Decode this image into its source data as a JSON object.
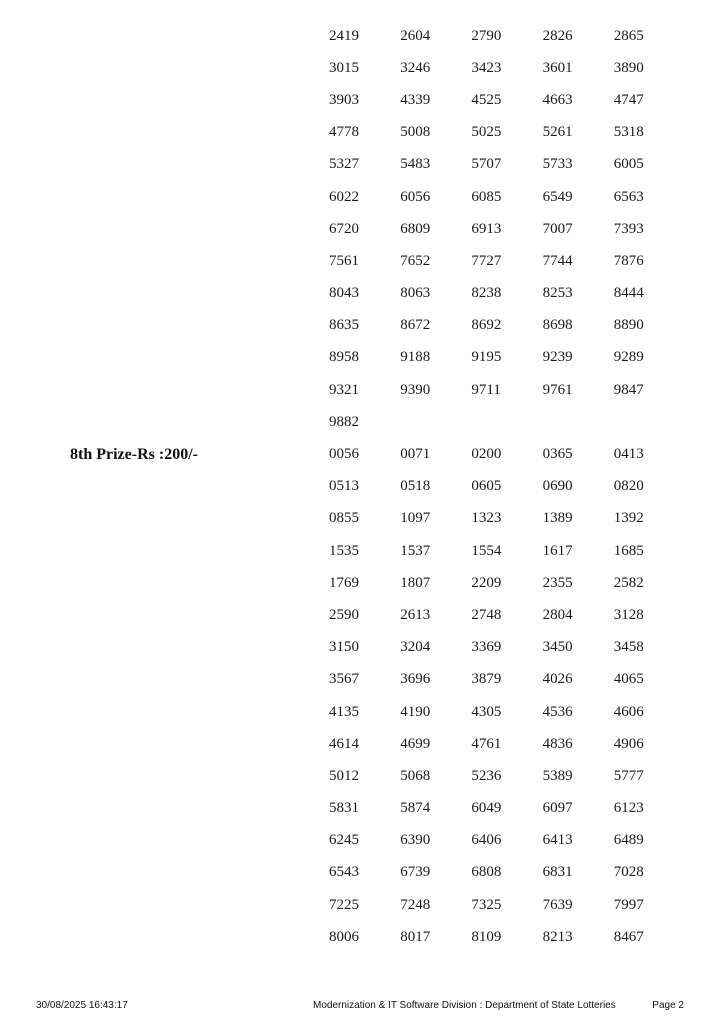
{
  "page": {
    "background_color": "#ffffff",
    "text_color": "#1b1b1b"
  },
  "results": {
    "sections": [
      {
        "label": "",
        "rows": [
          [
            "2419",
            "2604",
            "2790",
            "2826",
            "2865"
          ],
          [
            "3015",
            "3246",
            "3423",
            "3601",
            "3890"
          ],
          [
            "3903",
            "4339",
            "4525",
            "4663",
            "4747"
          ],
          [
            "4778",
            "5008",
            "5025",
            "5261",
            "5318"
          ],
          [
            "5327",
            "5483",
            "5707",
            "5733",
            "6005"
          ],
          [
            "6022",
            "6056",
            "6085",
            "6549",
            "6563"
          ],
          [
            "6720",
            "6809",
            "6913",
            "7007",
            "7393"
          ],
          [
            "7561",
            "7652",
            "7727",
            "7744",
            "7876"
          ],
          [
            "8043",
            "8063",
            "8238",
            "8253",
            "8444"
          ],
          [
            "8635",
            "8672",
            "8692",
            "8698",
            "8890"
          ],
          [
            "8958",
            "9188",
            "9195",
            "9239",
            "9289"
          ],
          [
            "9321",
            "9390",
            "9711",
            "9761",
            "9847"
          ],
          [
            "9882"
          ]
        ]
      },
      {
        "label": "8th Prize-Rs :200/-",
        "rows": [
          [
            "0056",
            "0071",
            "0200",
            "0365",
            "0413"
          ],
          [
            "0513",
            "0518",
            "0605",
            "0690",
            "0820"
          ],
          [
            "0855",
            "1097",
            "1323",
            "1389",
            "1392"
          ],
          [
            "1535",
            "1537",
            "1554",
            "1617",
            "1685"
          ],
          [
            "1769",
            "1807",
            "2209",
            "2355",
            "2582"
          ],
          [
            "2590",
            "2613",
            "2748",
            "2804",
            "3128"
          ],
          [
            "3150",
            "3204",
            "3369",
            "3450",
            "3458"
          ],
          [
            "3567",
            "3696",
            "3879",
            "4026",
            "4065"
          ],
          [
            "4135",
            "4190",
            "4305",
            "4536",
            "4606"
          ],
          [
            "4614",
            "4699",
            "4761",
            "4836",
            "4906"
          ],
          [
            "5012",
            "5068",
            "5236",
            "5389",
            "5777"
          ],
          [
            "5831",
            "5874",
            "6049",
            "6097",
            "6123"
          ],
          [
            "6245",
            "6390",
            "6406",
            "6413",
            "6489"
          ],
          [
            "6543",
            "6739",
            "6808",
            "6831",
            "7028"
          ],
          [
            "7225",
            "7248",
            "7325",
            "7639",
            "7997"
          ],
          [
            "8006",
            "8017",
            "8109",
            "8213",
            "8467"
          ]
        ]
      }
    ]
  },
  "footer": {
    "datetime": "30/08/2025 16:43:17",
    "division": "Modernization & IT Software Division : Department of State Lotteries",
    "page": "Page 2"
  }
}
